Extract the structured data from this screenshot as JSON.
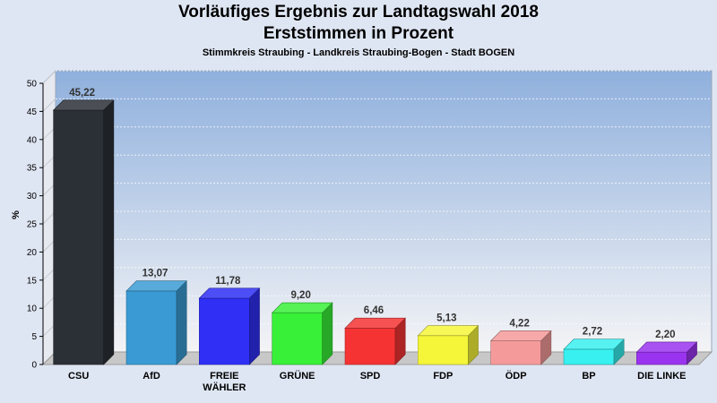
{
  "title": {
    "line1": "Vorläufiges Ergebnis zur Landtagswahl 2018",
    "line2": "Erststimmen in Prozent"
  },
  "subtitle": "Stimmkreis Straubing - Landkreis Straubing-Bogen - Stadt BOGEN",
  "chart_data": {
    "type": "bar",
    "title": "Vorläufiges Ergebnis zur Landtagswahl 2018 Erststimmen in Prozent",
    "subtitle": "Stimmkreis Straubing - Landkreis Straubing-Bogen - Stadt BOGEN",
    "ylabel": "%",
    "xlabel": "",
    "ylim": [
      0,
      50
    ],
    "yticks": [
      0,
      5,
      10,
      15,
      20,
      25,
      30,
      35,
      40,
      45,
      50
    ],
    "grid": true,
    "categories": [
      [
        "CSU"
      ],
      [
        "AfD"
      ],
      [
        "FREIE",
        "WÄHLER"
      ],
      [
        "GRÜNE"
      ],
      [
        "SPD"
      ],
      [
        "FDP"
      ],
      [
        "ÖDP"
      ],
      [
        "BP"
      ],
      [
        "DIE LINKE"
      ]
    ],
    "values": [
      45.22,
      13.07,
      11.78,
      9.2,
      6.46,
      5.13,
      4.22,
      2.72,
      2.2
    ],
    "value_labels": [
      "45,22",
      "13,07",
      "11,78",
      "9,20",
      "6,46",
      "5,13",
      "4,22",
      "2,72",
      "2,20"
    ],
    "colors": [
      "#2b2f36",
      "#3a9bd4",
      "#2f2ff5",
      "#38f038",
      "#f53333",
      "#f5f53a",
      "#f59a9a",
      "#38f0f0",
      "#9a33f0"
    ],
    "background_gradient": [
      "#8fb0dd",
      "#f4f4f6"
    ]
  }
}
